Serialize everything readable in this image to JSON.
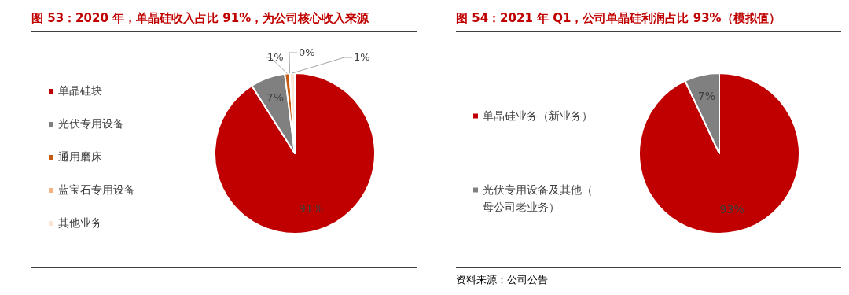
{
  "chart_data": [
    {
      "type": "pie",
      "title": "图 53：2020 年，单晶硅收入占比 91%，为公司核心收入来源",
      "categories": [
        "单晶硅块",
        "光伏专用设备",
        "通用磨床",
        "蓝宝石专用设备",
        "其他业务"
      ],
      "values": [
        91,
        7,
        1,
        0,
        1
      ],
      "colors": [
        "#c00000",
        "#808080",
        "#c55a11",
        "#f4b183",
        "#fbe5d6"
      ],
      "value_labels": [
        "91%",
        "7%",
        "1%",
        "0%",
        "1%"
      ],
      "legend": "left"
    },
    {
      "type": "pie",
      "title": "图 54：2021 年 Q1，公司单晶硅利润占比 93%（模拟值）",
      "categories": [
        "单晶硅业务（新业务）",
        "光伏专用设备及其他（母公司老业务）"
      ],
      "values": [
        93,
        7
      ],
      "colors": [
        "#c00000",
        "#808080"
      ],
      "value_labels": [
        "93%",
        "7%"
      ],
      "legend": "left",
      "annotations": [
        "资料来源：公司公告"
      ]
    }
  ]
}
